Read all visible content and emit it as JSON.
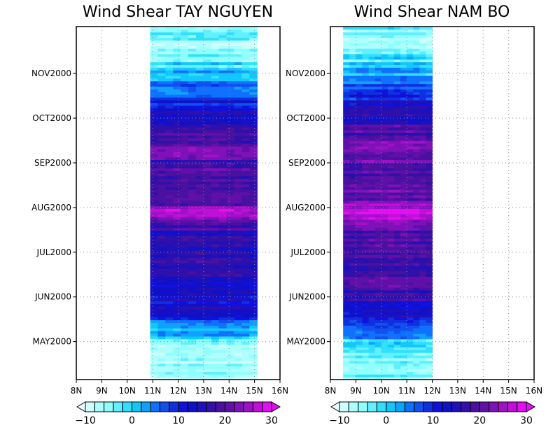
{
  "chart_data": [
    {
      "type": "heatmap",
      "title": "Wind Shear TAY NGUYEN",
      "xlabel": "",
      "ylabel": "",
      "x_tick_labels": [
        "8N",
        "9N",
        "10N",
        "11N",
        "12N",
        "13N",
        "14N",
        "15N",
        "16N"
      ],
      "xlim": [
        8,
        16
      ],
      "y_tick_labels": [
        "NOV2000",
        "OCT2000",
        "SEP2000",
        "AUG2000",
        "JUL2000",
        "JUN2000",
        "MAY2000"
      ],
      "ylim": [
        0,
        7.9
      ],
      "y_tick_values": [
        6.85,
        5.85,
        4.85,
        3.85,
        2.85,
        1.85,
        0.85
      ],
      "data_lat_range": [
        10.9,
        15.1
      ],
      "grid": true,
      "time_profile": [
        {
          "t": 0.0,
          "v": -7
        },
        {
          "t": 0.4,
          "v": -8
        },
        {
          "t": 0.8,
          "v": -6
        },
        {
          "t": 1.1,
          "v": 2
        },
        {
          "t": 1.4,
          "v": 10
        },
        {
          "t": 1.8,
          "v": 12
        },
        {
          "t": 2.3,
          "v": 14
        },
        {
          "t": 2.8,
          "v": 16
        },
        {
          "t": 3.3,
          "v": 15
        },
        {
          "t": 3.75,
          "v": 24
        },
        {
          "t": 4.0,
          "v": 18
        },
        {
          "t": 4.5,
          "v": 16
        },
        {
          "t": 5.1,
          "v": 20
        },
        {
          "t": 5.8,
          "v": 14
        },
        {
          "t": 6.3,
          "v": 8
        },
        {
          "t": 6.7,
          "v": 3
        },
        {
          "t": 7.1,
          "v": -3
        },
        {
          "t": 7.5,
          "v": -7
        },
        {
          "t": 7.9,
          "v": -5
        }
      ],
      "colorbar": {
        "min": -10,
        "max": 30,
        "step": 2,
        "ticks": [
          "-10",
          "0",
          "10",
          "20",
          "30"
        ]
      }
    },
    {
      "type": "heatmap",
      "title": "Wind Shear NAM BO",
      "xlabel": "",
      "ylabel": "",
      "x_tick_labels": [
        "8N",
        "9N",
        "10N",
        "11N",
        "12N",
        "13N",
        "14N",
        "15N",
        "16N"
      ],
      "xlim": [
        8,
        16
      ],
      "y_tick_labels": [
        "NOV2000",
        "OCT2000",
        "SEP2000",
        "AUG2000",
        "JUL2000",
        "JUN2000",
        "MAY2000"
      ],
      "ylim": [
        0,
        7.9
      ],
      "y_tick_values": [
        6.85,
        5.85,
        4.85,
        3.85,
        2.85,
        1.85,
        0.85
      ],
      "data_lat_range": [
        8.5,
        12.0
      ],
      "grid": true,
      "time_profile": [
        {
          "t": 0.0,
          "v": -6
        },
        {
          "t": 0.4,
          "v": -7
        },
        {
          "t": 0.8,
          "v": -4
        },
        {
          "t": 1.1,
          "v": 6
        },
        {
          "t": 1.4,
          "v": 12
        },
        {
          "t": 1.8,
          "v": 15
        },
        {
          "t": 2.3,
          "v": 18
        },
        {
          "t": 2.8,
          "v": 17
        },
        {
          "t": 3.3,
          "v": 19
        },
        {
          "t": 3.75,
          "v": 27
        },
        {
          "t": 4.0,
          "v": 21
        },
        {
          "t": 4.5,
          "v": 17
        },
        {
          "t": 5.1,
          "v": 22
        },
        {
          "t": 5.8,
          "v": 15
        },
        {
          "t": 6.3,
          "v": 10
        },
        {
          "t": 6.7,
          "v": 4
        },
        {
          "t": 7.1,
          "v": -2
        },
        {
          "t": 7.5,
          "v": -6
        },
        {
          "t": 7.9,
          "v": -4
        }
      ],
      "colorbar": {
        "min": -10,
        "max": 30,
        "step": 2,
        "ticks": [
          "-10",
          "0",
          "10",
          "20",
          "30"
        ]
      }
    }
  ],
  "colors": {
    "palette": [
      "#d0ffff",
      "#b0ffff",
      "#90ffff",
      "#60f0ff",
      "#30e0ff",
      "#10c8ff",
      "#10a0ff",
      "#1070ff",
      "#1050f0",
      "#1030e0",
      "#1010e0",
      "#1010c8",
      "#2010b8",
      "#3010a8",
      "#4a10a0",
      "#6010a8",
      "#8010b8",
      "#a010c8",
      "#c010d8",
      "#e010f0"
    ],
    "under": "#e8ffff",
    "over": "#e010f0"
  }
}
